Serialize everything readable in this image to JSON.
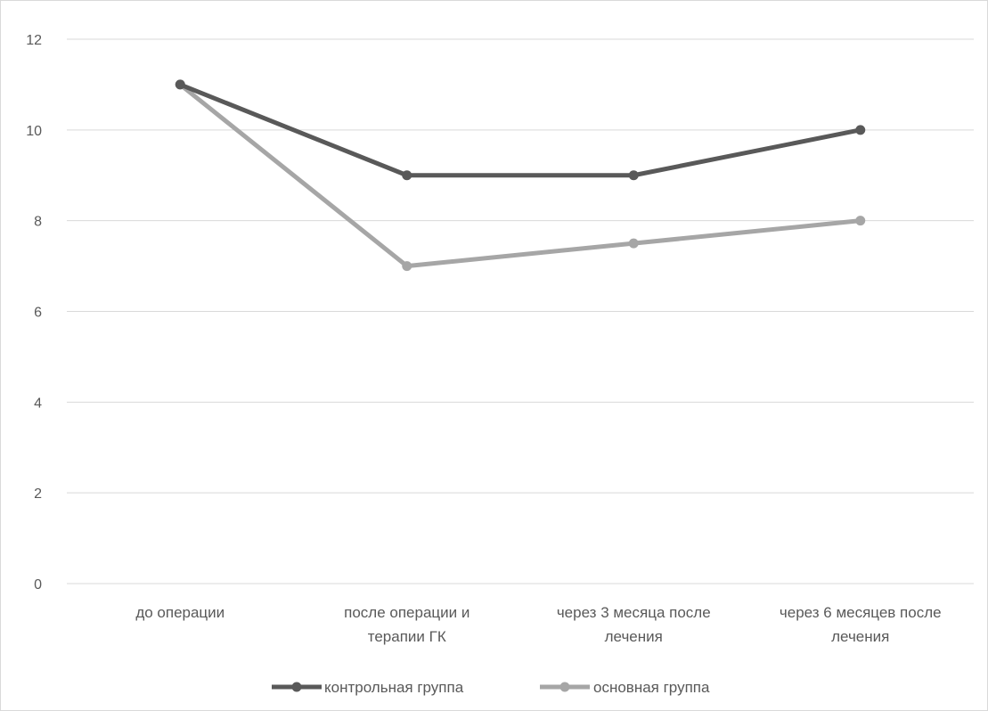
{
  "chart_data": {
    "type": "line",
    "title": "",
    "xlabel": "",
    "ylabel": "",
    "ylim": [
      0,
      12
    ],
    "yticks": [
      0,
      2,
      4,
      6,
      8,
      10,
      12
    ],
    "grid": true,
    "legend_position": "bottom",
    "categories": [
      [
        "до операции"
      ],
      [
        "после операции и",
        "терапии ГК"
      ],
      [
        "через 3 месяца после",
        "лечения"
      ],
      [
        "через 6 месяцев после",
        "лечения"
      ]
    ],
    "series": [
      {
        "name": "контрольная группа",
        "color": "#595959",
        "values": [
          11,
          9,
          9,
          10
        ]
      },
      {
        "name": "основная группа",
        "color": "#a6a6a6",
        "values": [
          11,
          7,
          7.5,
          8
        ]
      }
    ]
  }
}
